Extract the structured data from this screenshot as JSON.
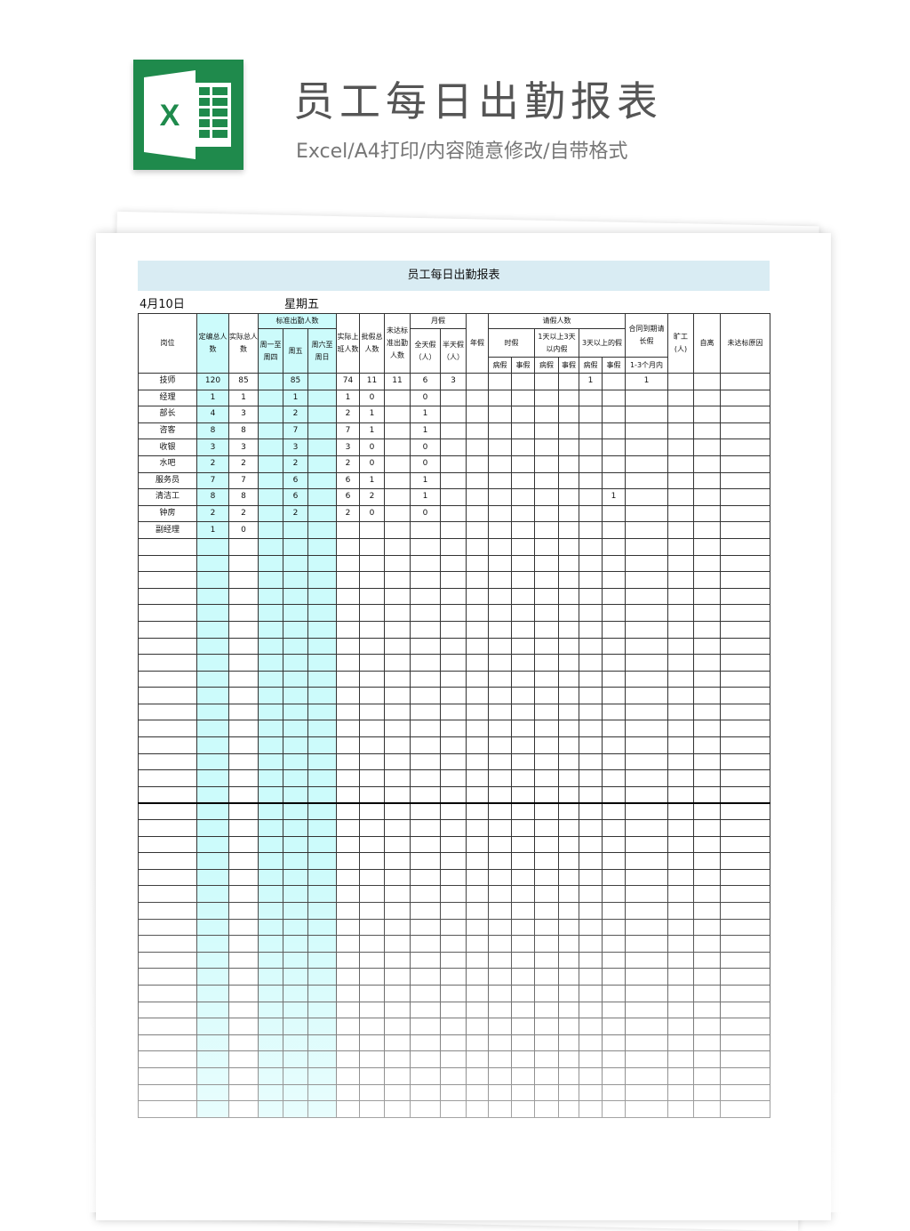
{
  "banner": {
    "title": "员工每日出勤报表",
    "subtitle": "Excel/A4打印/内容随意修改/自带格式",
    "logo_letter": "X",
    "logo_color": "#1f8a4c"
  },
  "sheet": {
    "title": "员工每日出勤报表",
    "date": "4月10日",
    "weekday": "星期五",
    "highlight_color": "#ccfbfb",
    "header": {
      "post": "岗位",
      "planned": "定编总人数",
      "actual_total": "实际总人数",
      "standard": "标准出勤人数",
      "mon_thu": "周一至周四",
      "fri": "周五",
      "sat_sun": "周六至周日",
      "actual_work": "实际上班人数",
      "approved_leave": "批假总人数",
      "below_standard": "未达标准出勤人数",
      "monthly_leave": "月假",
      "full_day": "全天假（人）",
      "half_day": "半天假（人）",
      "annual": "年假",
      "leave_count": "请假人数",
      "hourly": "时假",
      "one_to_three": "1天以上3天以内假",
      "over_three": "3天以上的假",
      "sick": "病假",
      "personal": "事假",
      "contract": "合同到期请长假",
      "contract_sub": "1-3个月内",
      "absent": "旷工(人)",
      "self_leave": "自离",
      "reason": "未达标原因"
    },
    "rows": [
      [
        "技师",
        "120",
        "85",
        "",
        "85",
        "",
        "74",
        "11",
        "11",
        "6",
        "3",
        "",
        "",
        "",
        "",
        "",
        "1",
        "",
        "1",
        "",
        "",
        ""
      ],
      [
        "经理",
        "1",
        "1",
        "",
        "1",
        "",
        "1",
        "0",
        "",
        "0",
        "",
        "",
        "",
        "",
        "",
        "",
        "",
        "",
        "",
        "",
        "",
        ""
      ],
      [
        "部长",
        "4",
        "3",
        "",
        "2",
        "",
        "2",
        "1",
        "",
        "1",
        "",
        "",
        "",
        "",
        "",
        "",
        "",
        "",
        "",
        "",
        "",
        ""
      ],
      [
        "咨客",
        "8",
        "8",
        "",
        "7",
        "",
        "7",
        "1",
        "",
        "1",
        "",
        "",
        "",
        "",
        "",
        "",
        "",
        "",
        "",
        "",
        "",
        ""
      ],
      [
        "收银",
        "3",
        "3",
        "",
        "3",
        "",
        "3",
        "0",
        "",
        "0",
        "",
        "",
        "",
        "",
        "",
        "",
        "",
        "",
        "",
        "",
        "",
        ""
      ],
      [
        "水吧",
        "2",
        "2",
        "",
        "2",
        "",
        "2",
        "0",
        "",
        "0",
        "",
        "",
        "",
        "",
        "",
        "",
        "",
        "",
        "",
        "",
        "",
        ""
      ],
      [
        "服务员",
        "7",
        "7",
        "",
        "6",
        "",
        "6",
        "1",
        "",
        "1",
        "",
        "",
        "",
        "",
        "",
        "",
        "",
        "",
        "",
        "",
        "",
        ""
      ],
      [
        "清洁工",
        "8",
        "8",
        "",
        "6",
        "",
        "6",
        "2",
        "",
        "1",
        "",
        "",
        "",
        "",
        "",
        "",
        "",
        "1",
        "",
        "",
        "",
        ""
      ],
      [
        "钟房",
        "2",
        "2",
        "",
        "2",
        "",
        "2",
        "0",
        "",
        "0",
        "",
        "",
        "",
        "",
        "",
        "",
        "",
        "",
        "",
        "",
        "",
        ""
      ],
      [
        "副经理",
        "1",
        "0",
        "",
        "",
        "",
        "",
        "",
        "",
        "",
        "",
        "",
        "",
        "",
        "",
        "",
        "",
        "",
        "",
        "",
        "",
        ""
      ]
    ],
    "blank_rows": 35
  }
}
